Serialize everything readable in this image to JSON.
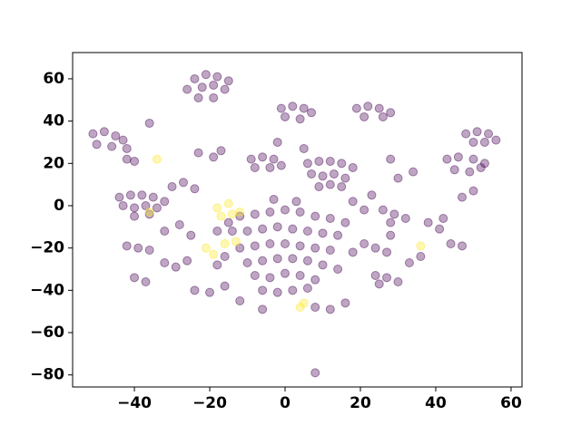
{
  "chart_data": {
    "type": "scatter",
    "xlim": [
      -56.4,
      62.9
    ],
    "ylim": [
      -85.7,
      72.4
    ],
    "xticks": [
      {
        "value": -40,
        "label": "−40"
      },
      {
        "value": -20,
        "label": "−20"
      },
      0,
      20,
      40,
      60
    ],
    "yticks": [
      {
        "value": -80,
        "label": "−80"
      },
      {
        "value": -60,
        "label": "−60"
      },
      {
        "value": -40,
        "label": "−40"
      },
      {
        "value": -20,
        "label": "−20"
      },
      0,
      20,
      40,
      60
    ],
    "series": [
      {
        "color": "#440154",
        "x": [
          -12,
          -8,
          -4,
          0,
          4,
          8,
          12,
          16,
          -14,
          -10,
          -6,
          -2,
          2,
          6,
          10,
          14,
          -12,
          -8,
          -4,
          0,
          4,
          8,
          12,
          -10,
          -6,
          -2,
          2,
          6,
          10,
          -8,
          -4,
          0,
          4,
          8,
          -6,
          -2,
          2,
          6,
          -3,
          3,
          18,
          -16,
          14,
          -18,
          -24,
          -21,
          -18,
          -15,
          -26,
          -22,
          -19,
          -16,
          -23,
          -19,
          -51,
          -48,
          -45,
          -43,
          -50,
          -46,
          -42,
          -1,
          2,
          5,
          7,
          0,
          4,
          19,
          22,
          25,
          28,
          21,
          26,
          48,
          51,
          54,
          56,
          50,
          53,
          43,
          46,
          50,
          53,
          45,
          49,
          52,
          6,
          9,
          12,
          15,
          18,
          7,
          10,
          13,
          16,
          9,
          12,
          15,
          -9,
          -6,
          -3,
          -8,
          -4,
          -1,
          -44,
          -41,
          -38,
          -35,
          -32,
          -43,
          -40,
          -37,
          -34,
          -40,
          -36,
          -42,
          -39,
          -36,
          -40,
          -37,
          -32,
          -29,
          -26,
          -24,
          -20,
          -16,
          -6,
          -12,
          8,
          12,
          16,
          24,
          27,
          30,
          25,
          21,
          24,
          27,
          28,
          26,
          29,
          32,
          28,
          38,
          42,
          41,
          44,
          47,
          47,
          50,
          30,
          34,
          28,
          -30,
          -27,
          -24,
          -23,
          -19,
          -17,
          -32,
          -28,
          -25,
          -18,
          -15,
          18,
          21,
          23,
          -42,
          -40,
          33,
          36,
          -36,
          -2,
          5,
          8
        ],
        "values": [
          -5,
          -4,
          -3,
          -2,
          -3,
          -5,
          -6,
          -8,
          -12,
          -12,
          -11,
          -10,
          -11,
          -12,
          -13,
          -14,
          -20,
          -19,
          -18,
          -18,
          -19,
          -20,
          -21,
          -27,
          -26,
          -25,
          -25,
          -26,
          -28,
          -33,
          -34,
          -32,
          -33,
          -35,
          -40,
          -41,
          -40,
          -39,
          3,
          2,
          -22,
          -24,
          -30,
          -28,
          60,
          62,
          61,
          59,
          55,
          56,
          57,
          55,
          51,
          51,
          34,
          35,
          33,
          31,
          29,
          28,
          27,
          46,
          47,
          46,
          44,
          42,
          41,
          46,
          47,
          46,
          44,
          42,
          42,
          34,
          35,
          34,
          31,
          30,
          30,
          22,
          23,
          22,
          20,
          17,
          16,
          18,
          20,
          21,
          21,
          20,
          18,
          15,
          14,
          15,
          13,
          9,
          10,
          9,
          22,
          23,
          22,
          18,
          18,
          19,
          4,
          5,
          5,
          4,
          2,
          0,
          -1,
          0,
          -1,
          -5,
          -4,
          -19,
          -20,
          -21,
          -34,
          -36,
          -27,
          -29,
          -26,
          -40,
          -41,
          -38,
          -49,
          -45,
          -48,
          -49,
          -46,
          -33,
          -34,
          -36,
          -37,
          -18,
          -20,
          -22,
          -14,
          -2,
          -4,
          -6,
          -8,
          -8,
          -6,
          -11,
          -18,
          -19,
          4,
          7,
          13,
          16,
          22,
          9,
          11,
          8,
          25,
          23,
          26,
          -12,
          -9,
          -14,
          -12,
          -8,
          2,
          -2,
          5,
          22,
          21,
          -27,
          -24,
          39,
          30,
          27,
          -79
        ]
      },
      {
        "color": "#fde725",
        "x": [
          -18,
          -15,
          -12,
          -17,
          -14,
          -21,
          -19,
          -16,
          -34,
          -13,
          36,
          5,
          4,
          -36
        ],
        "values": [
          -1,
          1,
          -3,
          -5,
          -4,
          -20,
          -23,
          -18,
          22,
          -17,
          -19,
          -46,
          -48,
          -3
        ]
      }
    ]
  }
}
